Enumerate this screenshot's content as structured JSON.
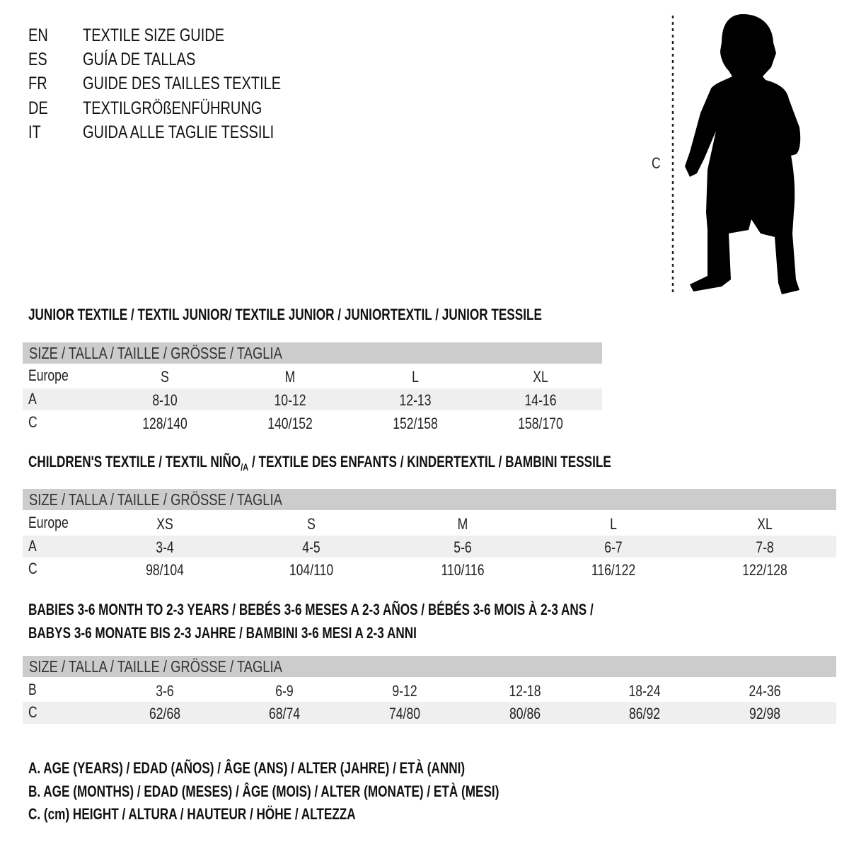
{
  "languages": [
    {
      "code": "EN",
      "title": "TEXTILE SIZE GUIDE"
    },
    {
      "code": "ES",
      "title": "GUÍA DE TALLAS"
    },
    {
      "code": "FR",
      "title": "GUIDE DES TAILLES TEXTILE"
    },
    {
      "code": "DE",
      "title": "TEXTILGRÖßENFÜHRUNG"
    },
    {
      "code": "IT",
      "title": "GUIDA ALLE TAGLIE TESSILI"
    }
  ],
  "figure": {
    "measure_label": "C",
    "icon": "child-silhouette-icon"
  },
  "size_header": "SIZE / TALLA / TAILLE / GRÖSSE / TAGLIA",
  "junior": {
    "title": "JUNIOR TEXTILE / TEXTIL JUNIOR/ TEXTILE JUNIOR / JUNIORTEXTIL / JUNIOR TESSILE",
    "rows": [
      {
        "label": "Europe",
        "values": [
          "S",
          "M",
          "L",
          "XL"
        ]
      },
      {
        "label": "A",
        "values": [
          "8-10",
          "10-12",
          "12-13",
          "14-16"
        ]
      },
      {
        "label": "C",
        "values": [
          "128/140",
          "140/152",
          "152/158",
          "158/170"
        ]
      }
    ]
  },
  "children": {
    "title_a": "CHILDREN'S TEXTILE / TEXTIL NIÑO",
    "title_sub": "/A",
    "title_b": " / TEXTILE DES ENFANTS / KINDERTEXTIL / BAMBINI TESSILE",
    "rows": [
      {
        "label": "Europe",
        "values": [
          "XS",
          "S",
          "M",
          "L",
          "XL"
        ]
      },
      {
        "label": "A",
        "values": [
          "3-4",
          "4-5",
          "5-6",
          "6-7",
          "7-8"
        ]
      },
      {
        "label": "C",
        "values": [
          "98/104",
          "104/110",
          "110/116",
          "116/122",
          "122/128"
        ]
      }
    ]
  },
  "babies": {
    "title_line1": "BABIES 3-6 MONTH TO 2-3 YEARS / BEBÉS 3-6 MESES A 2-3 AÑOS / BÉBÉS 3-6 MOIS À 2-3 ANS /",
    "title_line2": "BABYS 3-6 MONATE BIS 2-3 JAHRE / BAMBINI 3-6 MESI A 2-3 ANNI",
    "rows": [
      {
        "label": "B",
        "values": [
          "3-6",
          "6-9",
          "9-12",
          "12-18",
          "18-24",
          "24-36"
        ]
      },
      {
        "label": "C",
        "values": [
          "62/68",
          "68/74",
          "74/80",
          "80/86",
          "86/92",
          "92/98"
        ]
      }
    ]
  },
  "legend": [
    "A. AGE (YEARS) / EDAD (AÑOS) / ÂGE (ANS) / ALTER (JAHRE) / ETÀ (ANNI)",
    "B. AGE (MONTHS) / EDAD (MESES) / ÂGE (MOIS) / ALTER (MONATE) / ETÀ (MESI)",
    "C. (cm) HEIGHT / ALTURA / HAUTEUR / HÖHE / ALTEZZA"
  ],
  "colors": {
    "header_bg": "#cccccc",
    "band_bg": "#efefef",
    "text": "#111111"
  }
}
